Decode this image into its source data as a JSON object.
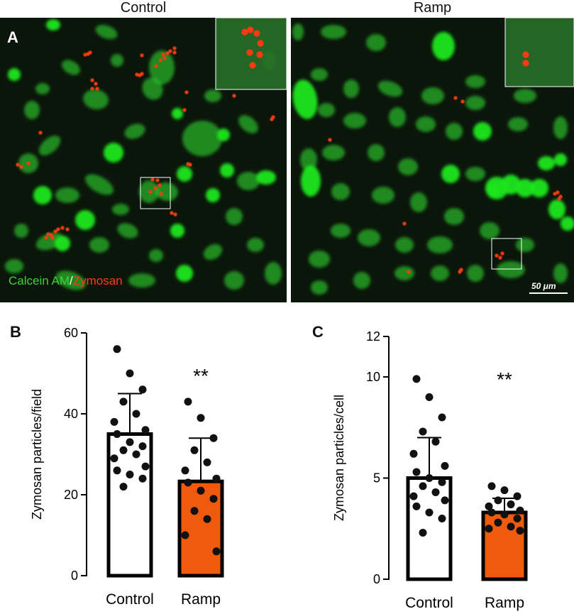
{
  "panelA": {
    "letter": "A",
    "left_title": "Control",
    "right_title": "Ramp",
    "stain_green": "Calcein AM",
    "stain_sep": "/",
    "stain_red": "Zymosan",
    "scale_bar_label": "50 μm",
    "colors": {
      "cell": "#2fd02f",
      "bright_cell": "#1ee61e",
      "particle": "#ff3a10",
      "background": "#0b160b"
    }
  },
  "panelB": {
    "letter": "B"
  },
  "panelC": {
    "letter": "C"
  },
  "chart_data": [
    {
      "type": "bar",
      "categories": [
        "Control",
        "Ramp"
      ],
      "values": [
        35,
        23.3
      ],
      "error": [
        10,
        10.7
      ],
      "ylabel": "Zymosan particles/field",
      "ylim": [
        0,
        60
      ],
      "yticks": [
        0,
        20,
        40,
        60
      ],
      "annotation": "**",
      "bar_colors": [
        "#ffffff",
        "#f05a0c"
      ],
      "points": [
        [
          56,
          50,
          46,
          43,
          40,
          38,
          36,
          35,
          33,
          32,
          31,
          30,
          29,
          27,
          26,
          25,
          24,
          22
        ],
        [
          43,
          39,
          34,
          31,
          28,
          26,
          24,
          23,
          21,
          19,
          16,
          14,
          10,
          6
        ]
      ]
    },
    {
      "type": "bar",
      "categories": [
        "Control",
        "Ramp"
      ],
      "values": [
        5.0,
        3.3
      ],
      "error": [
        2.0,
        0.7
      ],
      "ylabel": "Zymosan particles/cell",
      "ylim": [
        0,
        12
      ],
      "yticks": [
        0,
        5,
        10,
        12
      ],
      "annotation": "**",
      "bar_colors": [
        "#ffffff",
        "#f05a0c"
      ],
      "points": [
        [
          9.9,
          9.0,
          8.0,
          7.3,
          6.8,
          6.2,
          5.6,
          5.3,
          5.0,
          4.8,
          4.6,
          4.3,
          4.1,
          3.9,
          3.6,
          3.3,
          3.0,
          2.3
        ],
        [
          4.6,
          4.4,
          4.1,
          3.9,
          3.7,
          3.6,
          3.4,
          3.3,
          3.2,
          3.0,
          2.8,
          2.6,
          2.5,
          2.4
        ]
      ]
    }
  ]
}
